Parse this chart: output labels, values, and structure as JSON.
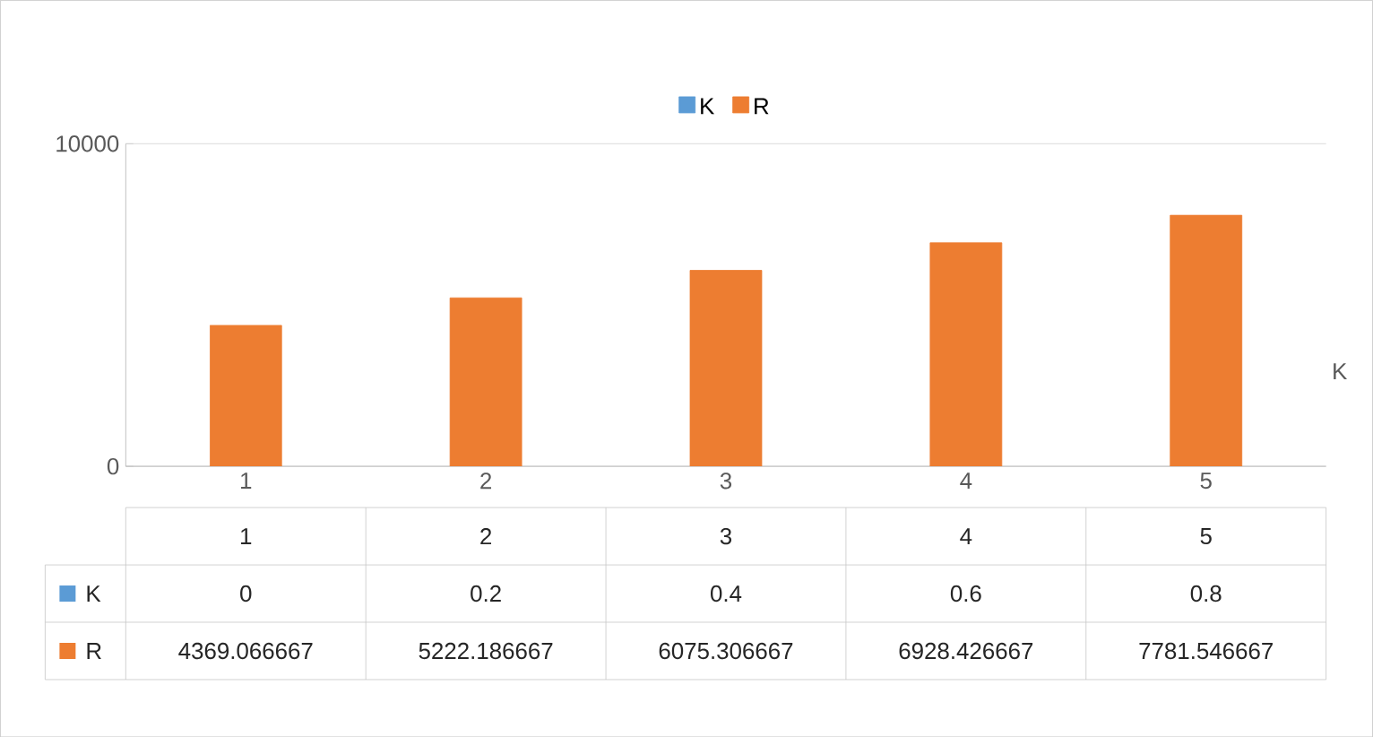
{
  "chart_data": {
    "type": "bar",
    "categories": [
      "1",
      "2",
      "3",
      "4",
      "5"
    ],
    "series": [
      {
        "name": "K",
        "color": "#5b9bd5",
        "values": [
          0,
          0.2,
          0.4,
          0.6,
          0.8
        ]
      },
      {
        "name": "R",
        "color": "#ed7d31",
        "values": [
          4369.066667,
          5222.186667,
          6075.306667,
          6928.426667,
          7781.546667
        ]
      }
    ],
    "ylim": [
      0,
      10000
    ],
    "yticks": [
      0,
      10000
    ],
    "grid": "y",
    "legend": "top",
    "data_labels": true,
    "annotations": [
      "K"
    ]
  }
}
